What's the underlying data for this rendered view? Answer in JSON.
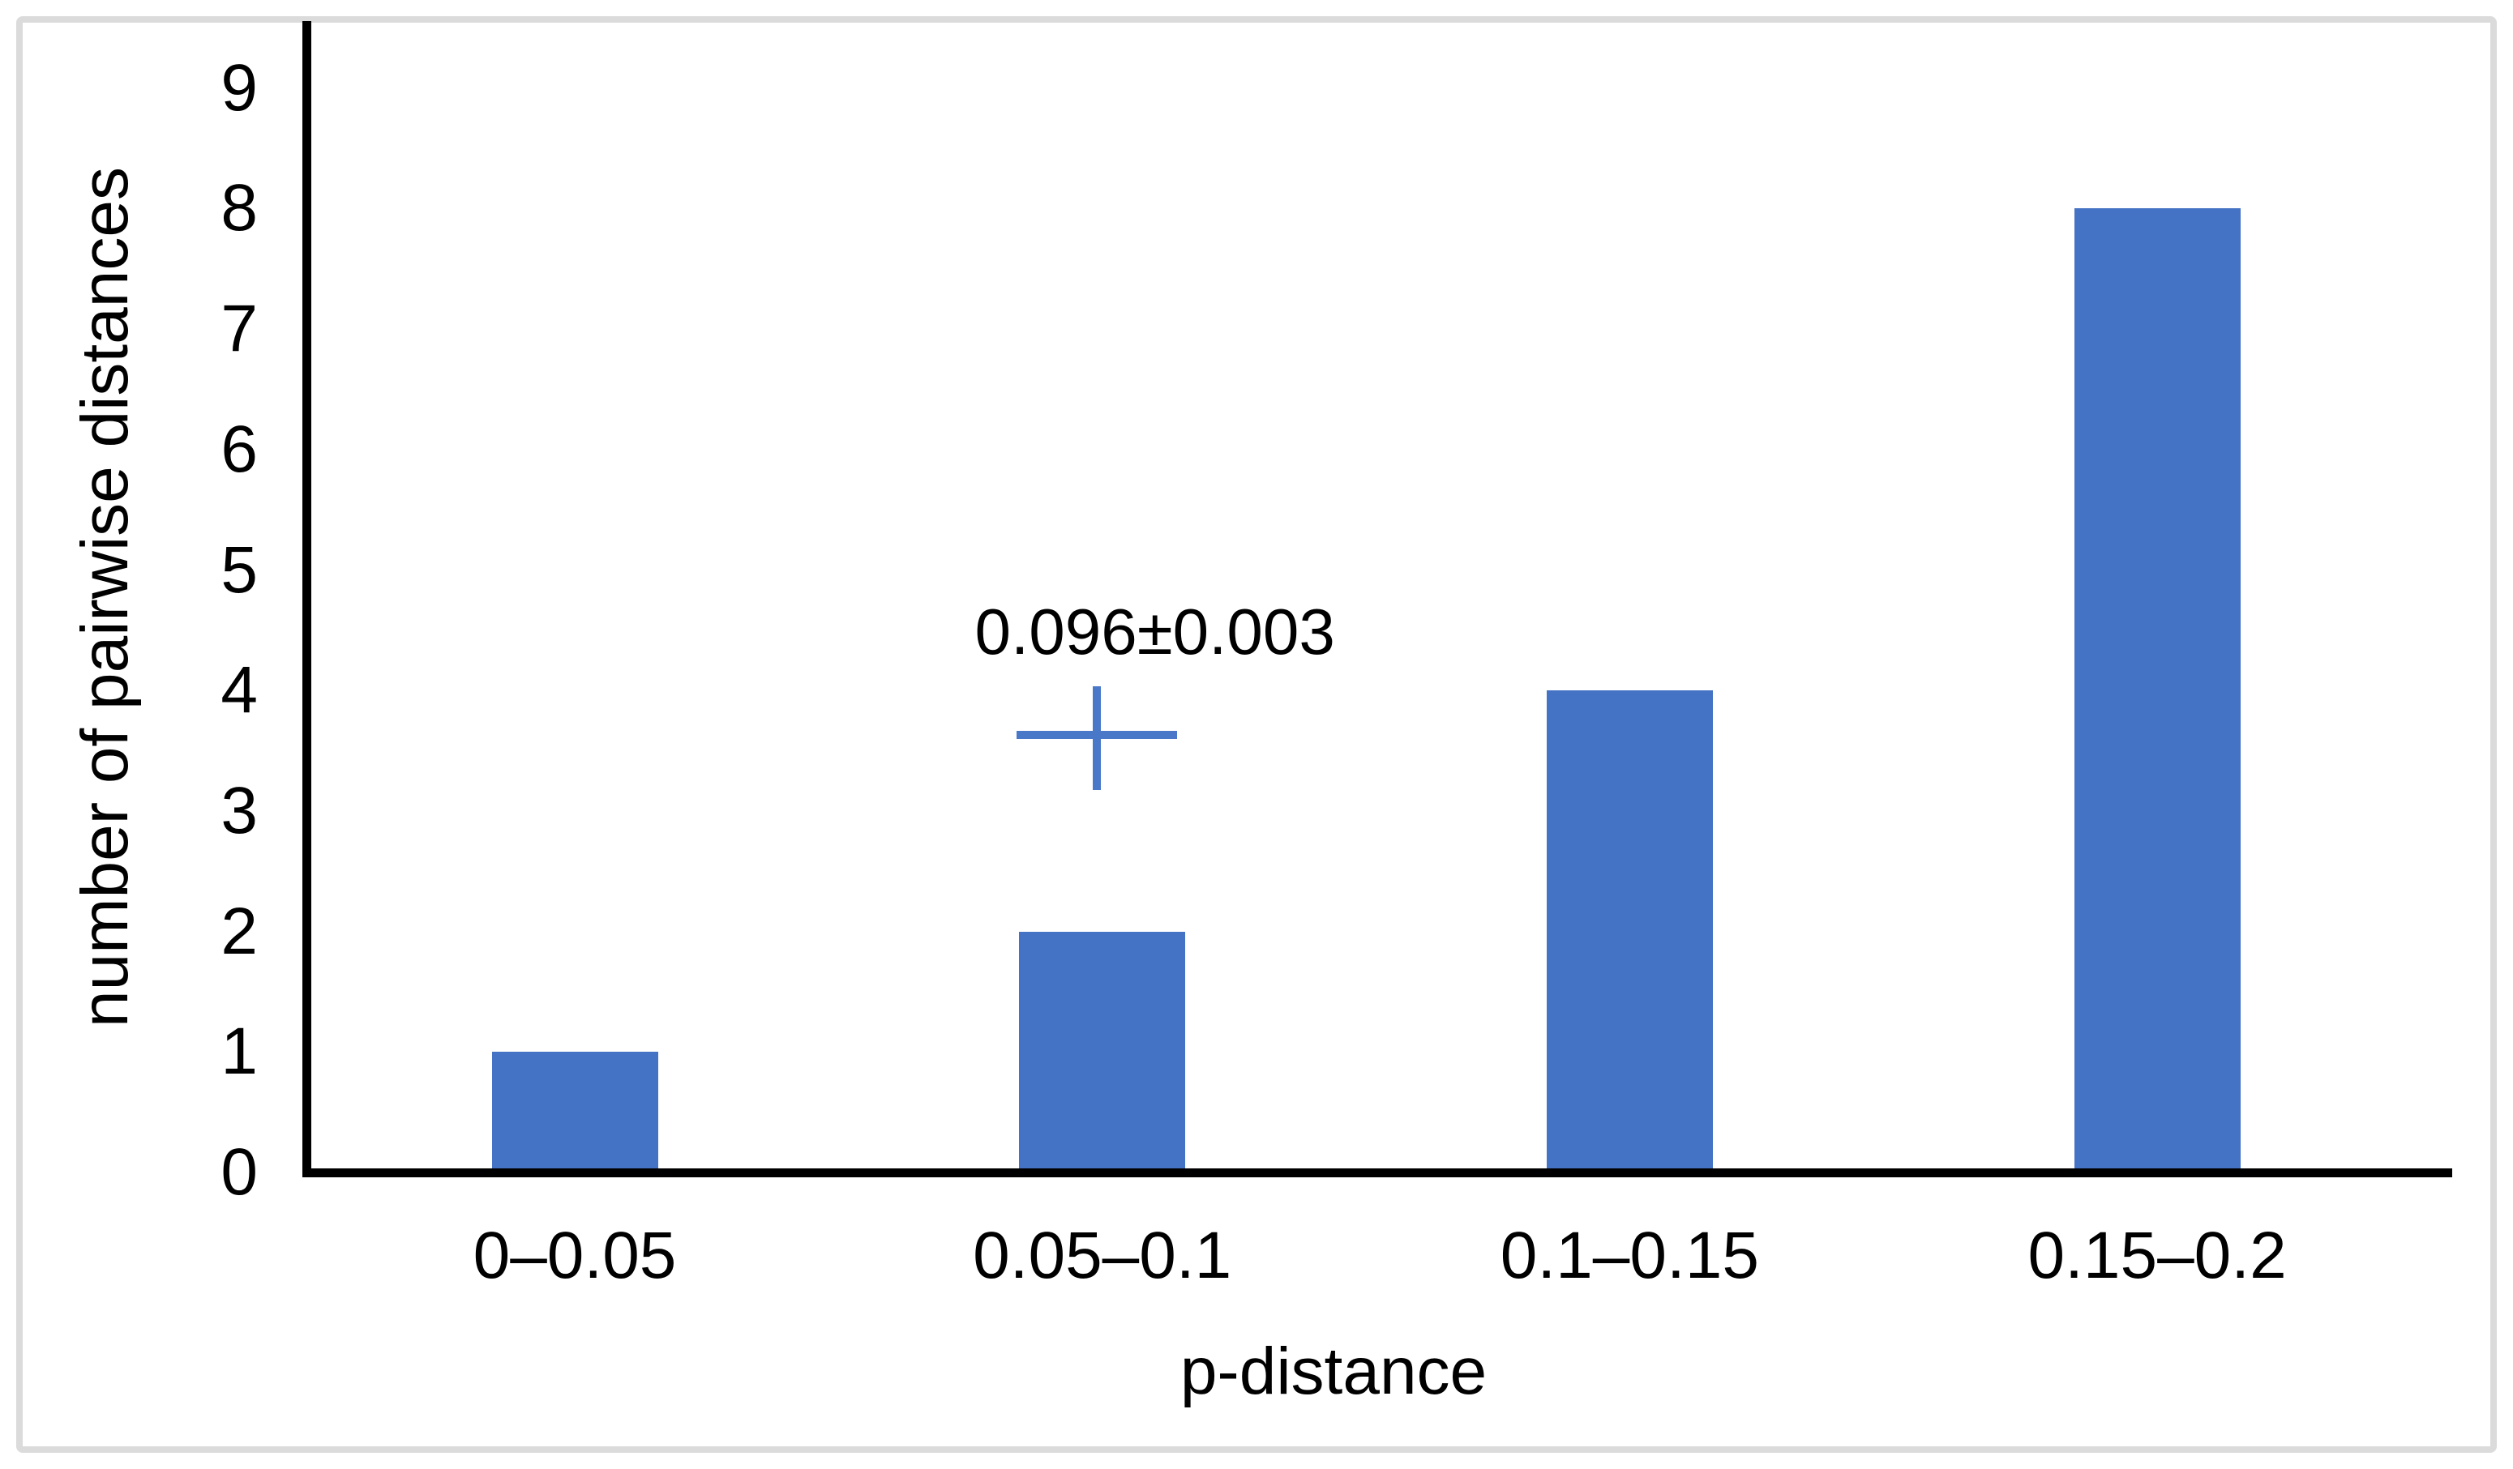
{
  "chart_data": {
    "type": "bar",
    "title": "",
    "categories": [
      "0–0.05",
      "0.05–0.1",
      "0.1–0.15",
      "0.15–0.2"
    ],
    "values": [
      1,
      2,
      4,
      8
    ],
    "xlabel": "p-distance",
    "ylabel": "number of pairwise distances",
    "ylim": [
      0,
      9
    ],
    "yticks": [
      "0",
      "1",
      "2",
      "3",
      "4",
      "5",
      "6",
      "7",
      "8",
      "9"
    ],
    "grid": false,
    "legend": "none",
    "bar_color": "#4472C4",
    "axis_color": "#000000",
    "annotation": {
      "label": "0.096±0.003",
      "marker": "plus-cross",
      "marker_color": "#4A78C8",
      "category_index": 1,
      "y_value": 3.63
    }
  },
  "figure": {
    "border_color": "#DBDBDB",
    "background_color": "#FFFFFF"
  }
}
